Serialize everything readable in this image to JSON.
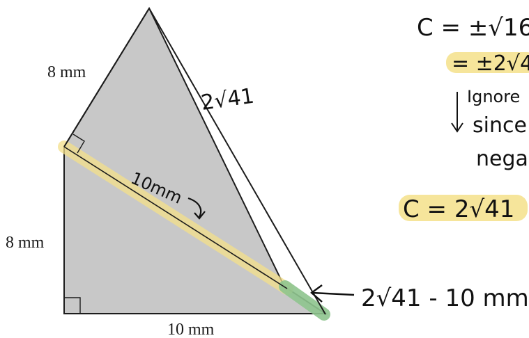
{
  "colors": {
    "shape_fill": "#c8c8c8",
    "stroke": "#1c1c1c",
    "highlight_yellow": "#f4e08a",
    "highlight_green": "#8fc58f"
  },
  "diagram": {
    "labels": {
      "top_left_side": "8 mm",
      "left_side": "8 mm",
      "bottom_side": "10 mm",
      "slant_side": "2√41",
      "diagonal": "10mm"
    },
    "annotations": {
      "bottom_arrow_text": "2√41 - 10 mm"
    }
  },
  "notes": {
    "line1": "C = ±√16",
    "line2": "= ±2√4",
    "ignore_line1": "Ignore",
    "ignore_line2": "since",
    "ignore_line3": "nega",
    "final": "C = 2√41"
  }
}
